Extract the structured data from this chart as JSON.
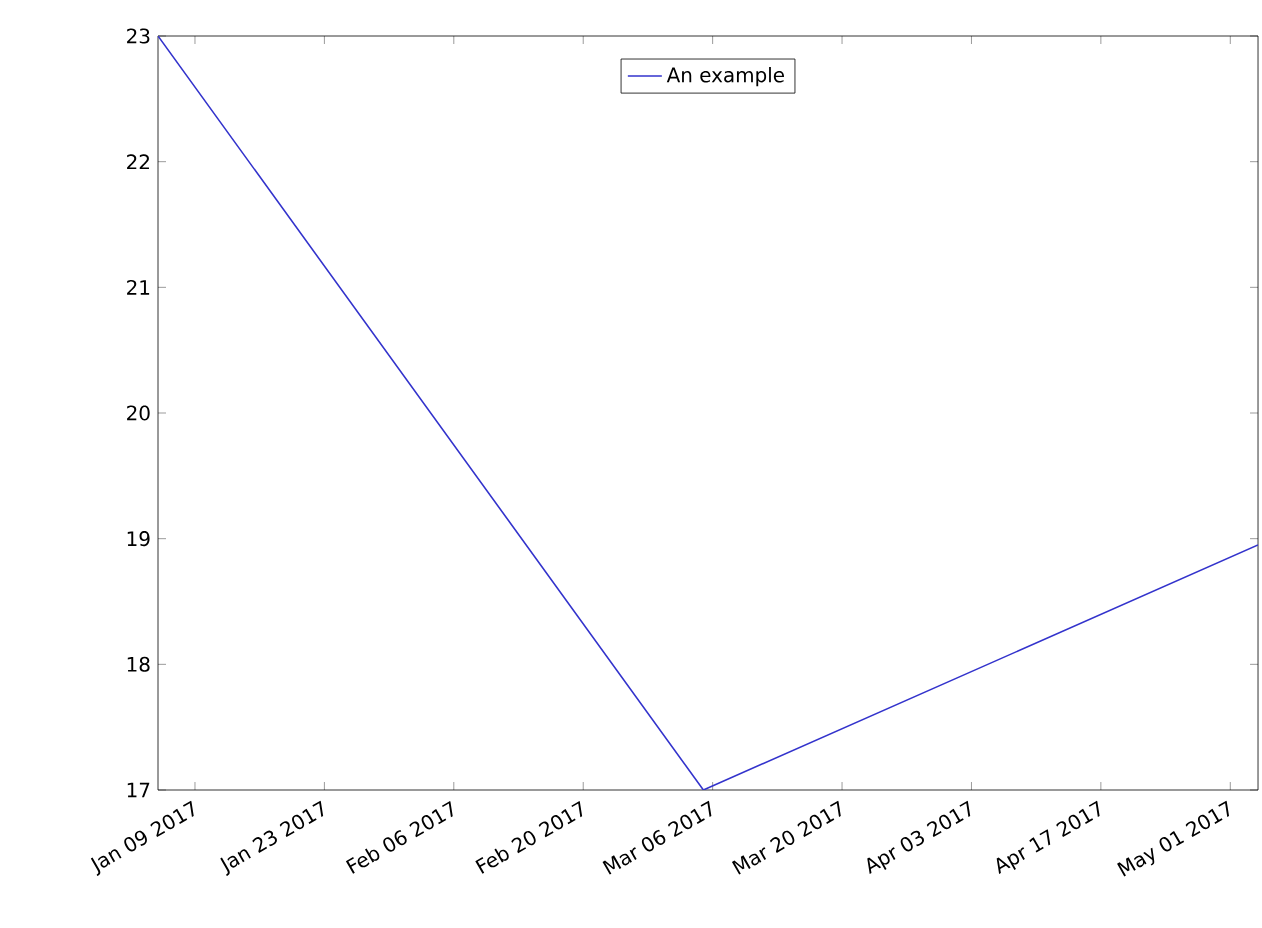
{
  "chart_data": {
    "type": "line",
    "x": [
      "2017-01-05",
      "2017-03-05",
      "2017-05-04"
    ],
    "series": [
      {
        "name": "An example",
        "color": "#3333cc",
        "values": [
          23,
          17,
          18.95
        ]
      }
    ],
    "xlim": [
      "2017-01-05",
      "2017-05-04"
    ],
    "xticks": [
      {
        "value": "2017-01-09",
        "label": "Jan 09 2017"
      },
      {
        "value": "2017-01-23",
        "label": "Jan 23 2017"
      },
      {
        "value": "2017-02-06",
        "label": "Feb 06 2017"
      },
      {
        "value": "2017-02-20",
        "label": "Feb 20 2017"
      },
      {
        "value": "2017-03-06",
        "label": "Mar 06 2017"
      },
      {
        "value": "2017-03-20",
        "label": "Mar 20 2017"
      },
      {
        "value": "2017-04-03",
        "label": "Apr 03 2017"
      },
      {
        "value": "2017-04-17",
        "label": "Apr 17 2017"
      },
      {
        "value": "2017-05-01",
        "label": "May 01 2017"
      }
    ],
    "ylim": [
      17,
      23
    ],
    "yticks": [
      17,
      18,
      19,
      20,
      21,
      22,
      23
    ],
    "legend": "top",
    "line_style": "solid"
  }
}
